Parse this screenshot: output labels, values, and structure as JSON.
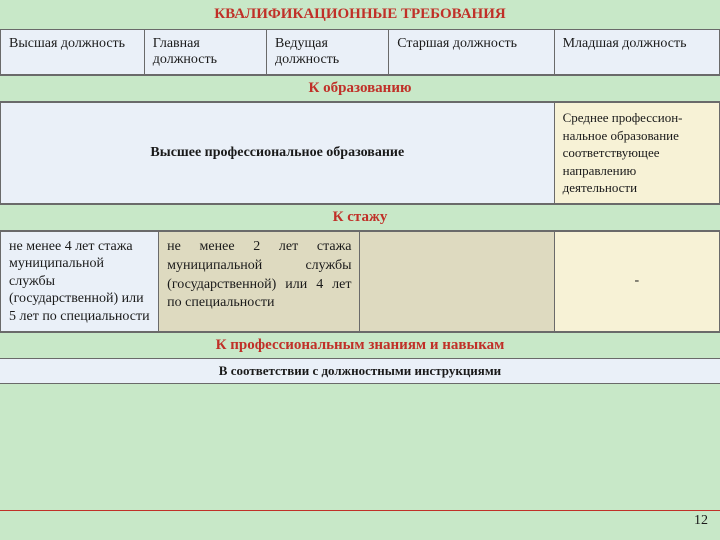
{
  "colors": {
    "bg_page": "#c8e8c8",
    "bg_cell_blue": "#eaf0f8",
    "bg_cell_yellow": "#f7f2d6",
    "bg_cell_olive": "#dedac0",
    "title_text": "#c03028",
    "border": "#6a6a6a",
    "footer_border": "#c03028",
    "text": "#1a1a1a"
  },
  "title": "КВАЛИФИКАЦИОННЫЕ ТРЕБОВАНИЯ",
  "headers": {
    "c1": "Высшая должность",
    "c2": "Главная должность",
    "c3": "Ведущая должность",
    "c4": "Старшая должность",
    "c5": "Младшая должность"
  },
  "sections": {
    "edu": "К образованию",
    "stazh": "К стажу",
    "prof": "К профессиональным знаниям и навыкам"
  },
  "edu_row": {
    "merged": "Высшее профессиональное образование",
    "c5": "Среднее профессион-нальное образование соответствующее  направлению деятельности"
  },
  "stazh_row": {
    "c1": "не менее 4 лет стажа муниципальной службы (государственной) или 5 лет по специальности",
    "c2": "не  менее  2  лет  стажа муниципальной      службы (государственной)  или 4 лет по специальности",
    "c34": "",
    "c5": "-"
  },
  "instr": "В соответствии с должностными инструкциями",
  "page_number": "12",
  "layout": {
    "col_widths_pct": [
      20,
      17,
      17,
      23,
      23
    ],
    "stazh_col_widths_pct": [
      22,
      28,
      27,
      23
    ]
  }
}
